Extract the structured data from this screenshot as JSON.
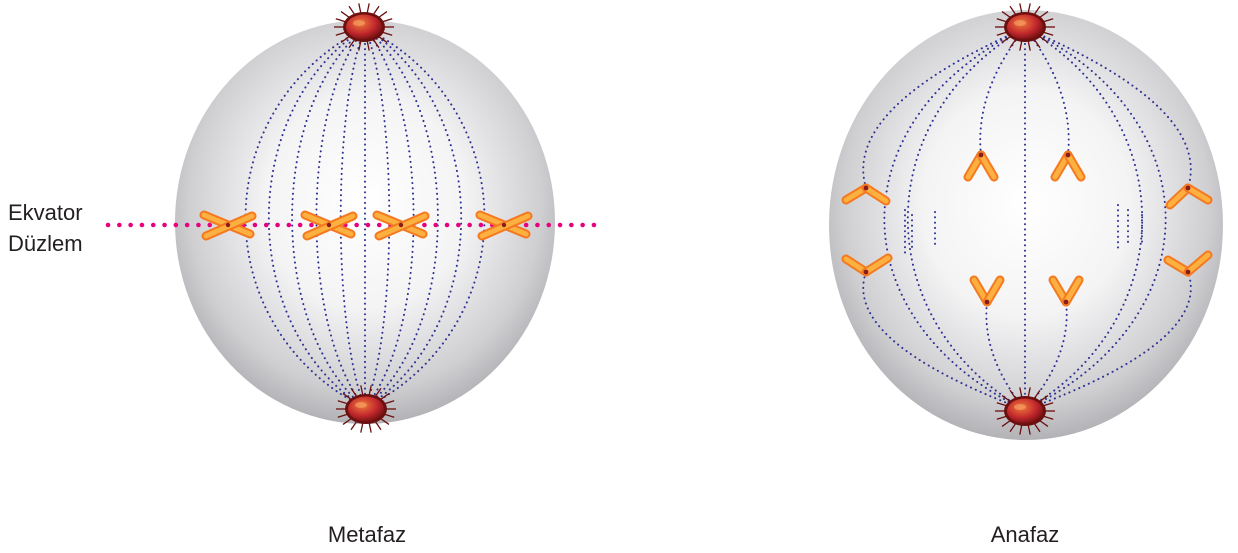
{
  "equator_label": {
    "line1": "Ekvator",
    "line2": "Düzlem"
  },
  "panels": [
    {
      "caption": "Metafaz"
    },
    {
      "caption": "Anafaz"
    }
  ],
  "colors": {
    "cell_light": "#ffffff",
    "cell_mid": "#e4e4e6",
    "cell_dark": "#a9a9ad",
    "spindle": "#2e3192",
    "equator_line": "#e6007e",
    "chromosome": "#f7941d",
    "centromere": "#8b1a1a",
    "centrosome": "#c1272d",
    "aster": "#6b0f0f"
  },
  "icons": [
    "centrosome-icon",
    "chromosome-icon",
    "spindle-fiber-icon"
  ]
}
